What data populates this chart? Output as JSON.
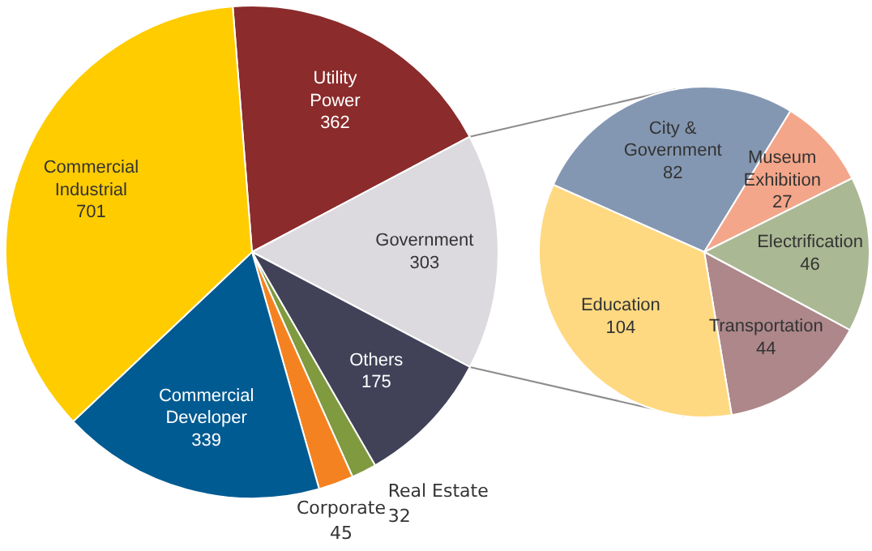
{
  "chart_data": [
    {
      "type": "pie",
      "categories": [
        "Utility Power",
        "Government",
        "Others",
        "Real Estate",
        "Corporate",
        "Commercial Developer",
        "Commercial Industrial"
      ],
      "values": [
        362,
        303,
        175,
        32,
        45,
        339,
        701
      ],
      "colors": [
        "#8b2b2b",
        "#dcdadf",
        "#414258",
        "#7f9a3f",
        "#f58220",
        "#005b92",
        "#ffcc00"
      ],
      "data_labels": true
    },
    {
      "type": "pie",
      "categories": [
        "City & Government",
        "Museum Exhibition",
        "Electrification",
        "Transportation",
        "Education"
      ],
      "values": [
        82,
        27,
        46,
        44,
        104
      ],
      "colors": [
        "#8497b2",
        "#f4a68a",
        "#abb894",
        "#ad878a",
        "#ffd981"
      ],
      "data_labels": true
    }
  ]
}
